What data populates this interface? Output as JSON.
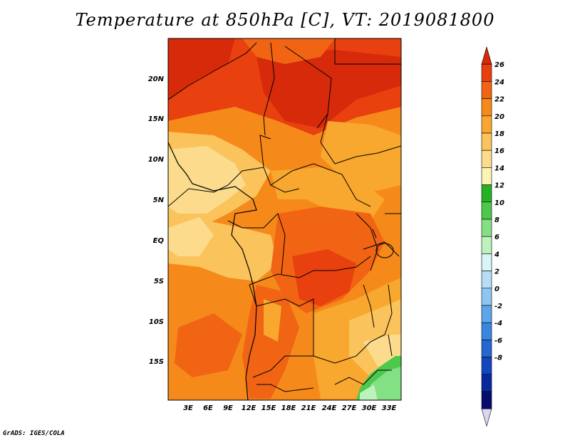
{
  "title": "Temperature at 850hPa [C], VT: 2019081800",
  "credit": "GrADS: IGES/COLA",
  "lat_labels": [
    "20N",
    "15N",
    "10N",
    "5N",
    "EQ",
    "5S",
    "10S",
    "15S"
  ],
  "lon_labels": [
    "3E",
    "6E",
    "9E",
    "12E",
    "15E",
    "18E",
    "21E",
    "24E",
    "27E",
    "30E",
    "33E"
  ],
  "colorbar": {
    "labels": [
      "26",
      "24",
      "22",
      "20",
      "18",
      "16",
      "14",
      "12",
      "10",
      "8",
      "6",
      "4",
      "2",
      "0",
      "-2",
      "-4",
      "-6",
      "-8"
    ],
    "colors": [
      "#d62a0a",
      "#e8400e",
      "#f06414",
      "#f58a1a",
      "#f8a82e",
      "#fac35c",
      "#fcdc8c",
      "#fdf3b4",
      "#26b226",
      "#4cc94c",
      "#84e084",
      "#bdf2bd",
      "#d8f4f4",
      "#b6dcf6",
      "#8ec6f2",
      "#5ca6ea",
      "#3a86e0",
      "#2466d2",
      "#1246be",
      "#08289e",
      "#040c6e",
      "#d8d8ee"
    ]
  }
}
